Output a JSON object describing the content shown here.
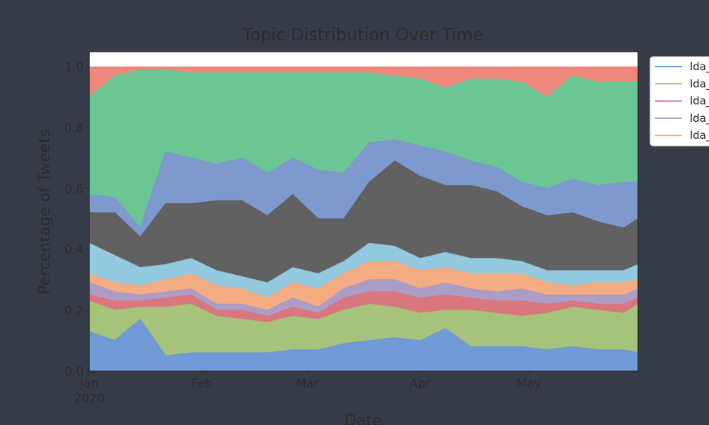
{
  "chart_data": {
    "type": "area",
    "stacked": true,
    "title": "Topic Distribution Over Time",
    "xlabel": "Date",
    "ylabel": "Percentage of Tweets",
    "xlim": [
      "2020-01-01",
      "2020-05-31"
    ],
    "ylim": [
      0,
      1.05
    ],
    "y_ticks": [
      0.0,
      0.2,
      0.4,
      0.6,
      0.8,
      1.0
    ],
    "y_tick_labels": [
      "0.0",
      "0.2",
      "0.4",
      "0.6",
      "0.8",
      "1.0"
    ],
    "x_ticks": [
      {
        "date": "2020-01-01",
        "label": "Jan",
        "sublabel": "2020"
      },
      {
        "date": "2020-02-01",
        "label": "Feb",
        "sublabel": ""
      },
      {
        "date": "2020-03-01",
        "label": "Mar",
        "sublabel": ""
      },
      {
        "date": "2020-04-01",
        "label": "Apr",
        "sublabel": ""
      },
      {
        "date": "2020-05-01",
        "label": "May",
        "sublabel": ""
      }
    ],
    "grid": false,
    "legend_position": "outside-top-right",
    "legend_labels": [
      "lda_",
      "lda_",
      "lda_",
      "lda_",
      "lda_"
    ],
    "x": [
      "2020-01-01",
      "2020-01-08",
      "2020-01-15",
      "2020-01-22",
      "2020-01-29",
      "2020-02-05",
      "2020-02-12",
      "2020-02-19",
      "2020-02-26",
      "2020-03-04",
      "2020-03-11",
      "2020-03-18",
      "2020-03-25",
      "2020-04-01",
      "2020-04-08",
      "2020-04-15",
      "2020-04-22",
      "2020-04-29",
      "2020-05-06",
      "2020-05-13",
      "2020-05-20",
      "2020-05-27",
      "2020-05-31"
    ],
    "series": [
      {
        "color": "#6b98d6",
        "values": [
          0.13,
          0.1,
          0.17,
          0.05,
          0.06,
          0.06,
          0.06,
          0.06,
          0.07,
          0.07,
          0.09,
          0.1,
          0.11,
          0.1,
          0.14,
          0.08,
          0.08,
          0.08,
          0.07,
          0.08,
          0.07,
          0.07,
          0.06
        ]
      },
      {
        "color": "#a3c177",
        "values": [
          0.1,
          0.1,
          0.04,
          0.16,
          0.16,
          0.12,
          0.11,
          0.1,
          0.11,
          0.1,
          0.11,
          0.12,
          0.1,
          0.09,
          0.06,
          0.12,
          0.11,
          0.1,
          0.12,
          0.13,
          0.13,
          0.12,
          0.16
        ]
      },
      {
        "color": "#d9737a",
        "values": [
          0.02,
          0.03,
          0.02,
          0.03,
          0.03,
          0.02,
          0.03,
          0.02,
          0.03,
          0.02,
          0.04,
          0.04,
          0.05,
          0.05,
          0.05,
          0.04,
          0.04,
          0.05,
          0.03,
          0.02,
          0.02,
          0.03,
          0.02
        ]
      },
      {
        "color": "#a89ac4",
        "values": [
          0.04,
          0.03,
          0.02,
          0.02,
          0.02,
          0.02,
          0.02,
          0.02,
          0.03,
          0.02,
          0.03,
          0.04,
          0.04,
          0.03,
          0.04,
          0.03,
          0.03,
          0.04,
          0.03,
          0.02,
          0.03,
          0.03,
          0.03
        ]
      },
      {
        "color": "#f4a97e",
        "values": [
          0.03,
          0.03,
          0.03,
          0.04,
          0.05,
          0.06,
          0.05,
          0.04,
          0.05,
          0.06,
          0.05,
          0.06,
          0.06,
          0.06,
          0.05,
          0.05,
          0.06,
          0.05,
          0.04,
          0.03,
          0.04,
          0.04,
          0.03
        ]
      },
      {
        "color": "#8fc8df",
        "values": [
          0.1,
          0.09,
          0.06,
          0.05,
          0.05,
          0.05,
          0.04,
          0.05,
          0.05,
          0.05,
          0.04,
          0.06,
          0.05,
          0.04,
          0.05,
          0.05,
          0.05,
          0.04,
          0.04,
          0.05,
          0.04,
          0.04,
          0.05
        ]
      },
      {
        "color": "#5c5c5c",
        "values": [
          0.1,
          0.14,
          0.1,
          0.2,
          0.18,
          0.23,
          0.25,
          0.22,
          0.24,
          0.18,
          0.14,
          0.2,
          0.28,
          0.27,
          0.22,
          0.24,
          0.22,
          0.18,
          0.18,
          0.19,
          0.16,
          0.14,
          0.15
        ]
      },
      {
        "color": "#7a96cb",
        "values": [
          0.06,
          0.05,
          0.03,
          0.17,
          0.15,
          0.12,
          0.14,
          0.14,
          0.12,
          0.16,
          0.15,
          0.13,
          0.07,
          0.1,
          0.11,
          0.08,
          0.08,
          0.08,
          0.09,
          0.11,
          0.12,
          0.15,
          0.12
        ]
      },
      {
        "color": "#66c490",
        "values": [
          0.32,
          0.4,
          0.52,
          0.27,
          0.28,
          0.3,
          0.28,
          0.33,
          0.28,
          0.32,
          0.33,
          0.23,
          0.21,
          0.22,
          0.21,
          0.27,
          0.29,
          0.33,
          0.3,
          0.34,
          0.34,
          0.33,
          0.33
        ]
      },
      {
        "color": "#ee8478",
        "values": [
          0.1,
          0.03,
          0.01,
          0.01,
          0.02,
          0.02,
          0.02,
          0.02,
          0.02,
          0.02,
          0.02,
          0.02,
          0.03,
          0.04,
          0.07,
          0.04,
          0.04,
          0.05,
          0.1,
          0.03,
          0.05,
          0.05,
          0.05
        ]
      }
    ]
  }
}
